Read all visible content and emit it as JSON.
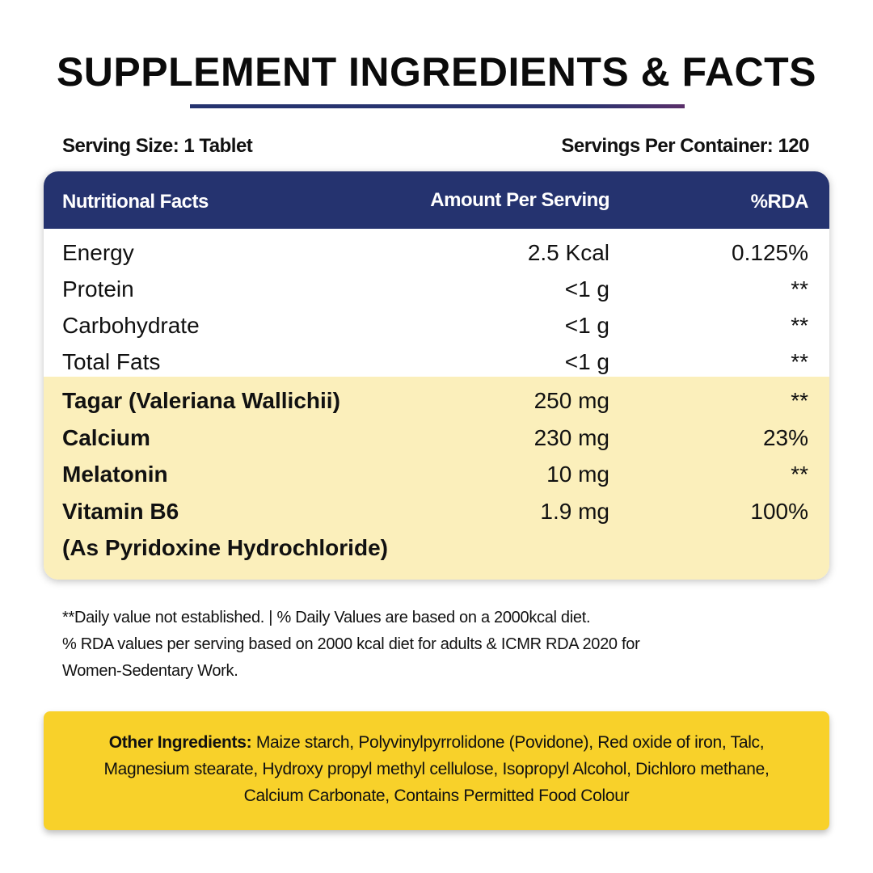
{
  "title": "SUPPLEMENT INGREDIENTS & FACTS",
  "serving_size": "Serving Size: 1 Tablet",
  "servings_per_container": "Servings Per Container: 120",
  "colors": {
    "header": "#25336f",
    "highlight": "#fbefbb",
    "other_box": "#f8d12a"
  },
  "table": {
    "headers": [
      "Nutritional Facts",
      "Amount Per Serving",
      "%RDA"
    ],
    "basic_rows": [
      {
        "name": "Energy",
        "amount": "2.5 Kcal",
        "rda": "0.125%"
      },
      {
        "name": "Protein",
        "amount": "<1 g",
        "rda": "**"
      },
      {
        "name": "Carbohydrate",
        "amount": "<1 g",
        "rda": "**"
      },
      {
        "name": "Total Fats",
        "amount": "<1 g",
        "rda": "**"
      }
    ],
    "active_rows": [
      {
        "name": "Tagar (Valeriana Wallichii)",
        "amount": "250 mg",
        "rda": "**"
      },
      {
        "name": "Calcium",
        "amount": "230 mg",
        "rda": "23%"
      },
      {
        "name": "Melatonin",
        "amount": "10 mg",
        "rda": "**"
      },
      {
        "name": "Vitamin B6",
        "amount": "1.9 mg",
        "rda": "100%"
      },
      {
        "name": "(As Pyridoxine Hydrochloride)",
        "amount": "",
        "rda": ""
      }
    ]
  },
  "footnotes": [
    "**Daily value not established. | % Daily Values are based on a 2000kcal diet.",
    "% RDA values per serving based on 2000 kcal diet for adults & ICMR RDA 2020 for",
    "Women-Sedentary Work."
  ],
  "other_ingredients": {
    "label": "Other Ingredients:",
    "text": " Maize starch, Polyvinylpyrrolidone (Povidone), Red oxide of iron, Talc, Magnesium stearate, Hydroxy propyl methyl cellulose, Isopropyl Alcohol, Dichloro methane, Calcium Carbonate, Contains Permitted Food Colour"
  }
}
